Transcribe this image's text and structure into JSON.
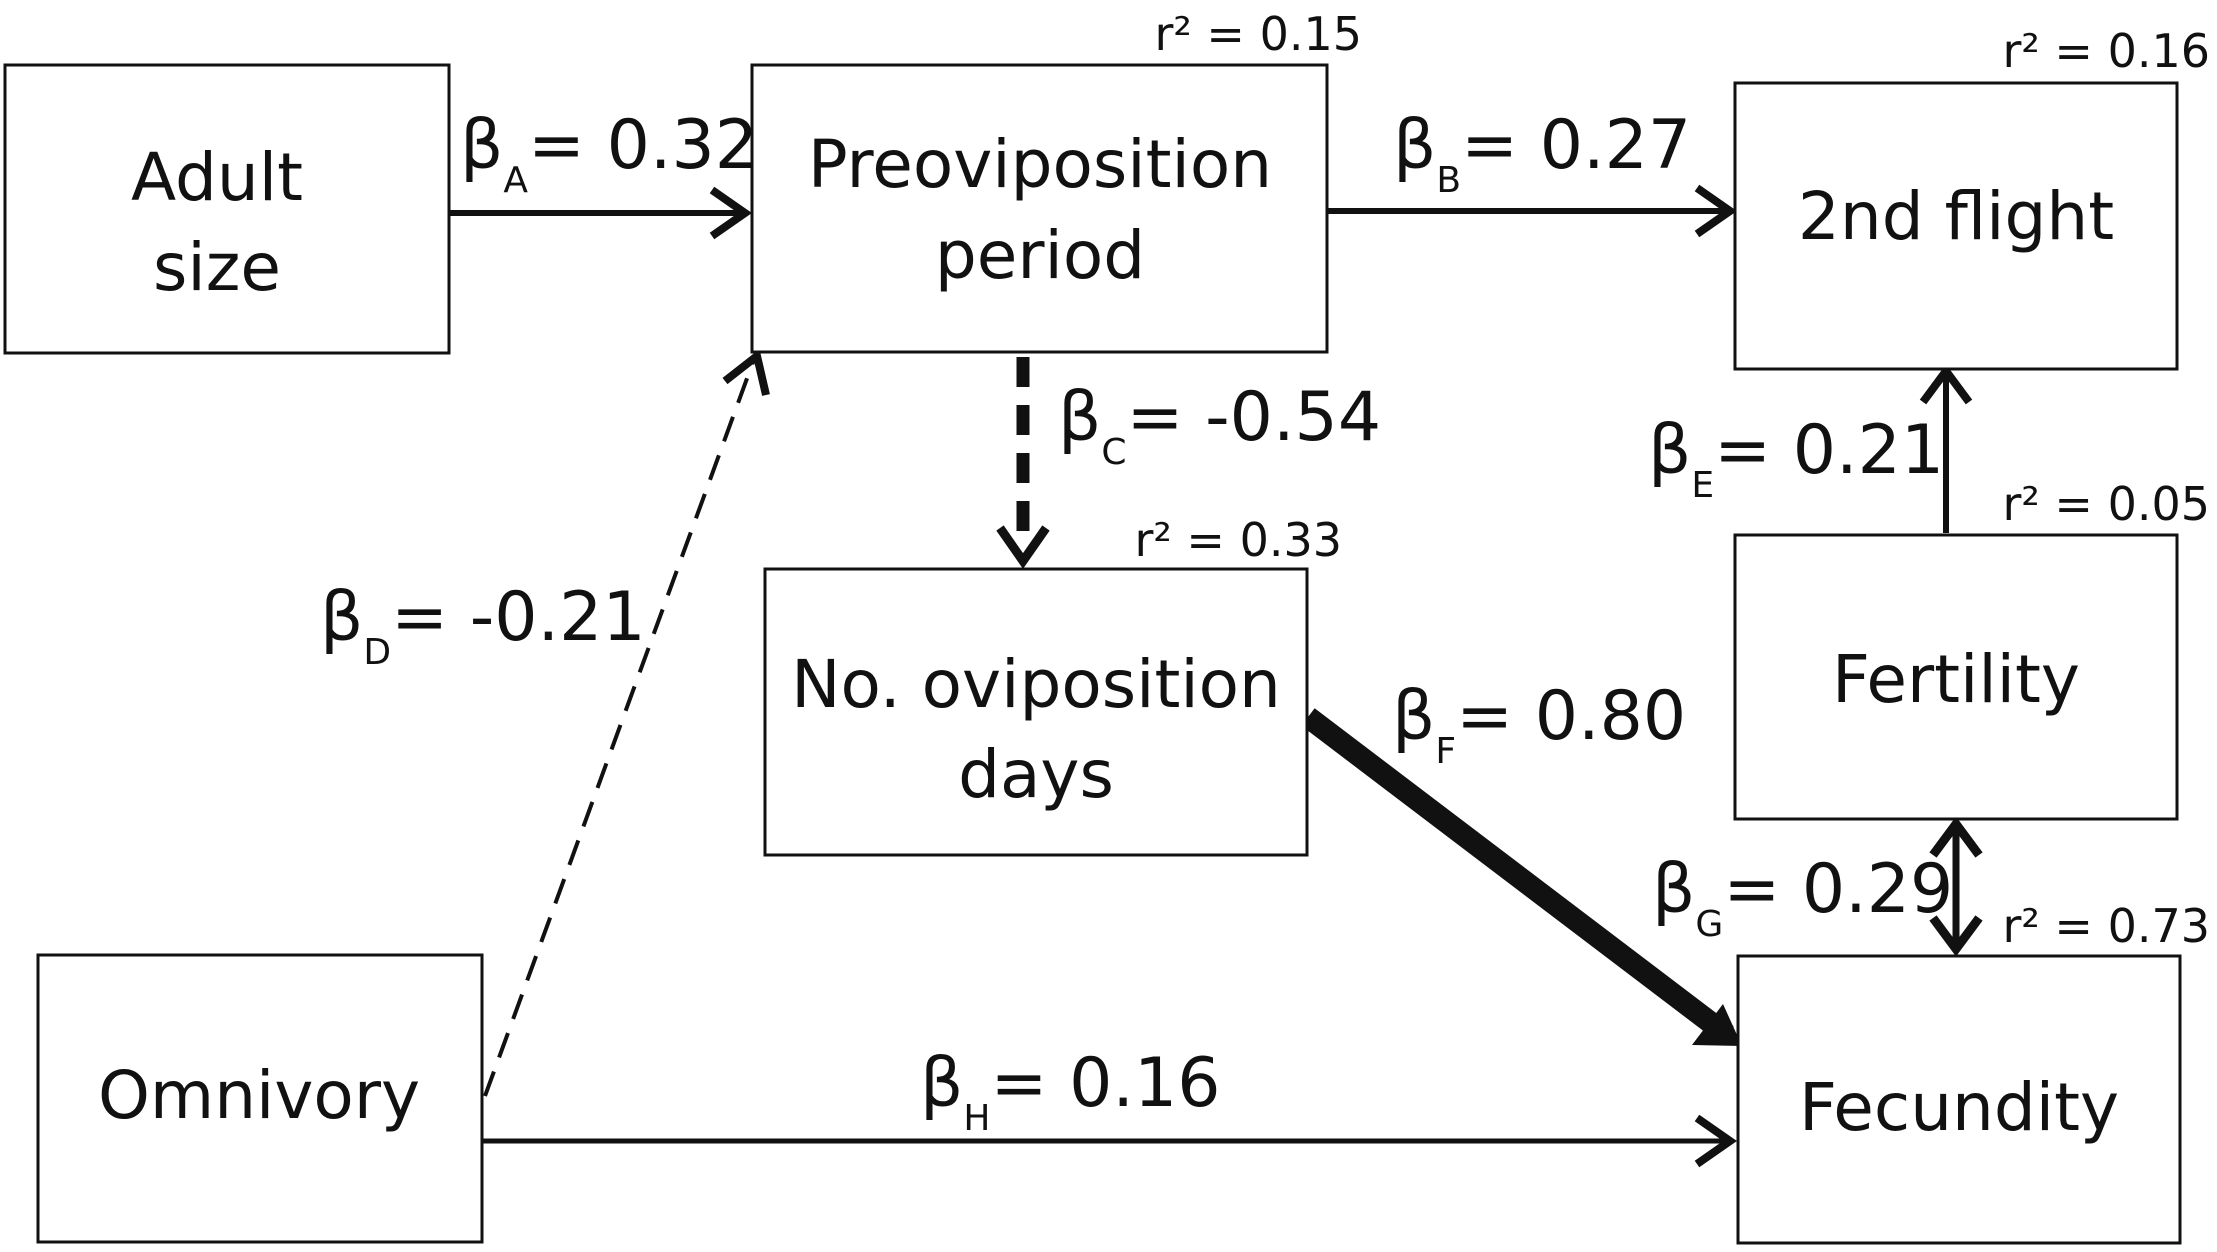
{
  "nodes": {
    "adult_size": {
      "line1": "Adult",
      "line2": "size"
    },
    "preoviposition": {
      "line1": "Preoviposition",
      "line2": "period",
      "r2": "r² = 0.15"
    },
    "second_flight": {
      "line1": "2nd flight",
      "r2": "r² = 0.16"
    },
    "oviposition_days": {
      "line1": "No. oviposition",
      "line2": "days",
      "r2": "r² = 0.33"
    },
    "fertility": {
      "line1": "Fertility",
      "r2": "r² = 0.05"
    },
    "omnivory": {
      "line1": "Omnivory"
    },
    "fecundity": {
      "line1": "Fecundity",
      "r2": "r² = 0.73"
    }
  },
  "paths": {
    "A": {
      "symbol": "β",
      "sub": "A",
      "value": "= 0.32",
      "style": "solid",
      "from": "Adult size",
      "to": "Preoviposition period"
    },
    "B": {
      "symbol": "β",
      "sub": "B",
      "value": "= 0.27",
      "style": "solid",
      "from": "Preoviposition period",
      "to": "2nd flight"
    },
    "C": {
      "symbol": "β",
      "sub": "C",
      "value": "=  -0.54",
      "style": "dashed",
      "from": "Preoviposition period",
      "to": "No. oviposition days"
    },
    "D": {
      "symbol": "β",
      "sub": "D",
      "value": "= -0.21",
      "style": "dashed",
      "from": "Omnivory",
      "to": "Preoviposition period"
    },
    "E": {
      "symbol": "β",
      "sub": "E",
      "value": "= 0.21",
      "style": "solid",
      "from": "Fertility",
      "to": "2nd flight"
    },
    "F": {
      "symbol": "β",
      "sub": "F",
      "value": "= 0.80",
      "style": "solid",
      "from": "No. oviposition days",
      "to": "Fecundity"
    },
    "G": {
      "symbol": "β",
      "sub": "G",
      "value": "= 0.29",
      "style": "double",
      "from": "Fertility",
      "to": "Fecundity"
    },
    "H": {
      "symbol": "β",
      "sub": "H",
      "value": "= 0.16",
      "style": "solid",
      "from": "Omnivory",
      "to": "Fecundity"
    }
  },
  "colors": {
    "ink": "#111111",
    "background": "#ffffff"
  }
}
